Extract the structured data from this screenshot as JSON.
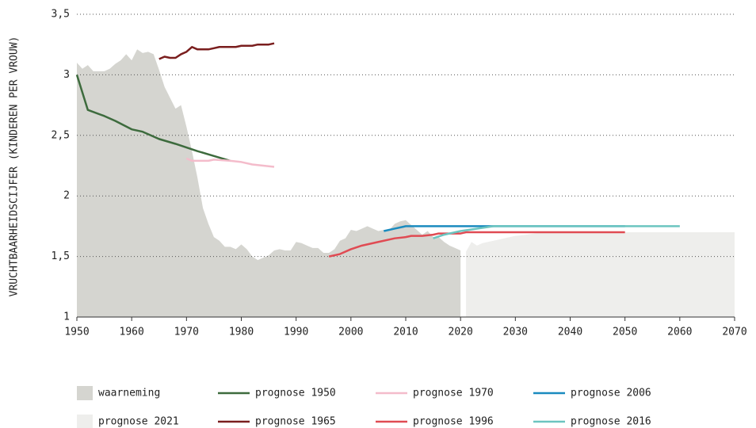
{
  "chart_data": {
    "type": "line",
    "ylabel": "VRUCHTBAARHEIDSCIJFER (KINDEREN PER VROUW)",
    "xlim": [
      1950,
      2070
    ],
    "xticks": [
      1950,
      1960,
      1970,
      1980,
      1990,
      2000,
      2010,
      2020,
      2030,
      2040,
      2050,
      2060,
      2070
    ],
    "ylim": [
      1,
      3.5
    ],
    "yticks": [
      1,
      {
        "value": 1.5,
        "label": "1,5"
      },
      2,
      {
        "value": 2.5,
        "label": "2,5"
      },
      3,
      {
        "value": 3.5,
        "label": "3,5"
      }
    ],
    "grid": true,
    "series": [
      {
        "name": "waarneming",
        "type": "area",
        "color": "#d5d5d0",
        "x": [
          1950,
          1951,
          1952,
          1953,
          1954,
          1955,
          1956,
          1957,
          1958,
          1959,
          1960,
          1961,
          1962,
          1963,
          1964,
          1965,
          1966,
          1967,
          1968,
          1969,
          1970,
          1971,
          1972,
          1973,
          1974,
          1975,
          1976,
          1977,
          1978,
          1979,
          1980,
          1981,
          1982,
          1983,
          1984,
          1985,
          1986,
          1987,
          1988,
          1989,
          1990,
          1991,
          1992,
          1993,
          1994,
          1995,
          1996,
          1997,
          1998,
          1999,
          2000,
          2001,
          2002,
          2003,
          2004,
          2005,
          2006,
          2007,
          2008,
          2009,
          2010,
          2011,
          2012,
          2013,
          2014,
          2015,
          2016,
          2017,
          2018,
          2019,
          2020
        ],
        "values": [
          3.1,
          3.05,
          3.08,
          3.03,
          3.03,
          3.03,
          3.05,
          3.09,
          3.12,
          3.17,
          3.12,
          3.21,
          3.18,
          3.19,
          3.17,
          3.04,
          2.9,
          2.81,
          2.72,
          2.75,
          2.57,
          2.37,
          2.15,
          1.9,
          1.77,
          1.66,
          1.63,
          1.58,
          1.58,
          1.56,
          1.6,
          1.56,
          1.5,
          1.47,
          1.49,
          1.51,
          1.55,
          1.56,
          1.55,
          1.55,
          1.62,
          1.61,
          1.59,
          1.57,
          1.57,
          1.53,
          1.53,
          1.56,
          1.63,
          1.65,
          1.72,
          1.71,
          1.73,
          1.75,
          1.73,
          1.71,
          1.72,
          1.72,
          1.77,
          1.79,
          1.8,
          1.76,
          1.72,
          1.68,
          1.71,
          1.66,
          1.66,
          1.62,
          1.59,
          1.57,
          1.55
        ]
      },
      {
        "name": "prognose 2021",
        "type": "area",
        "color": "#eeeeec",
        "x": [
          2021,
          2022,
          2023,
          2024,
          2025,
          2026,
          2027,
          2028,
          2029,
          2030,
          2032,
          2035,
          2070
        ],
        "values": [
          1.54,
          1.62,
          1.59,
          1.61,
          1.62,
          1.63,
          1.64,
          1.65,
          1.66,
          1.67,
          1.68,
          1.7,
          1.7
        ]
      },
      {
        "name": "prognose 1950",
        "type": "line",
        "color": "#3d6b3d",
        "x": [
          1950,
          1952,
          1955,
          1957,
          1960,
          1962,
          1965,
          1968,
          1970,
          1972,
          1975,
          1978
        ],
        "values": [
          3.0,
          2.71,
          2.66,
          2.62,
          2.55,
          2.53,
          2.47,
          2.43,
          2.4,
          2.37,
          2.33,
          2.29
        ]
      },
      {
        "name": "prognose 1965",
        "type": "line",
        "color": "#7a1e1e",
        "x": [
          1965,
          1966,
          1967,
          1968,
          1969,
          1970,
          1971,
          1972,
          1974,
          1975,
          1976,
          1979,
          1980,
          1982,
          1983,
          1985,
          1986
        ],
        "values": [
          3.13,
          3.15,
          3.14,
          3.14,
          3.17,
          3.19,
          3.23,
          3.21,
          3.21,
          3.22,
          3.23,
          3.23,
          3.24,
          3.24,
          3.25,
          3.25,
          3.26
        ]
      },
      {
        "name": "prognose 1970",
        "type": "line",
        "color": "#f4bccb",
        "x": [
          1970,
          1971,
          1974,
          1975,
          1978,
          1980,
          1982,
          1984,
          1986
        ],
        "values": [
          2.31,
          2.29,
          2.29,
          2.3,
          2.29,
          2.28,
          2.26,
          2.25,
          2.24
        ]
      },
      {
        "name": "prognose 1996",
        "type": "line",
        "color": "#e04b53",
        "x": [
          1996,
          1998,
          2000,
          2002,
          2005,
          2008,
          2010,
          2011,
          2013,
          2015,
          2016,
          2020,
          2021,
          2050
        ],
        "values": [
          1.5,
          1.52,
          1.56,
          1.59,
          1.62,
          1.65,
          1.66,
          1.67,
          1.67,
          1.68,
          1.69,
          1.69,
          1.7,
          1.7
        ]
      },
      {
        "name": "prognose 2006",
        "type": "line",
        "color": "#1a8bbf",
        "x": [
          2006,
          2008,
          2010,
          2050
        ],
        "values": [
          1.71,
          1.73,
          1.75,
          1.75
        ]
      },
      {
        "name": "prognose 2016",
        "type": "line",
        "color": "#6cc5c0",
        "x": [
          2015,
          2017,
          2020,
          2023,
          2026,
          2060
        ],
        "values": [
          1.65,
          1.68,
          1.71,
          1.73,
          1.75,
          1.75
        ]
      }
    ]
  }
}
